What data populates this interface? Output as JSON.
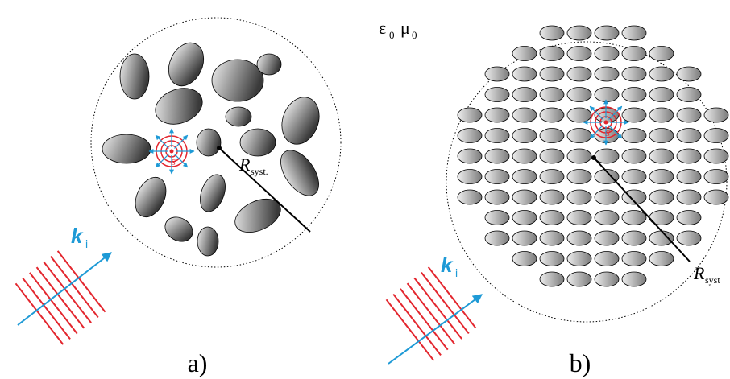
{
  "medium": {
    "epsilon": "ε",
    "epsilon_sub": "0",
    "mu": "μ",
    "mu_sub": "0"
  },
  "panels": [
    {
      "label": "a)",
      "k_symbol": "k",
      "k_sub": "i",
      "r_symbol": "R",
      "r_sub": "syst.",
      "source": "S"
    },
    {
      "label": "b)",
      "k_symbol": "k",
      "k_sub": "i",
      "r_symbol": "R",
      "r_sub": "syst",
      "source": "S"
    }
  ]
}
